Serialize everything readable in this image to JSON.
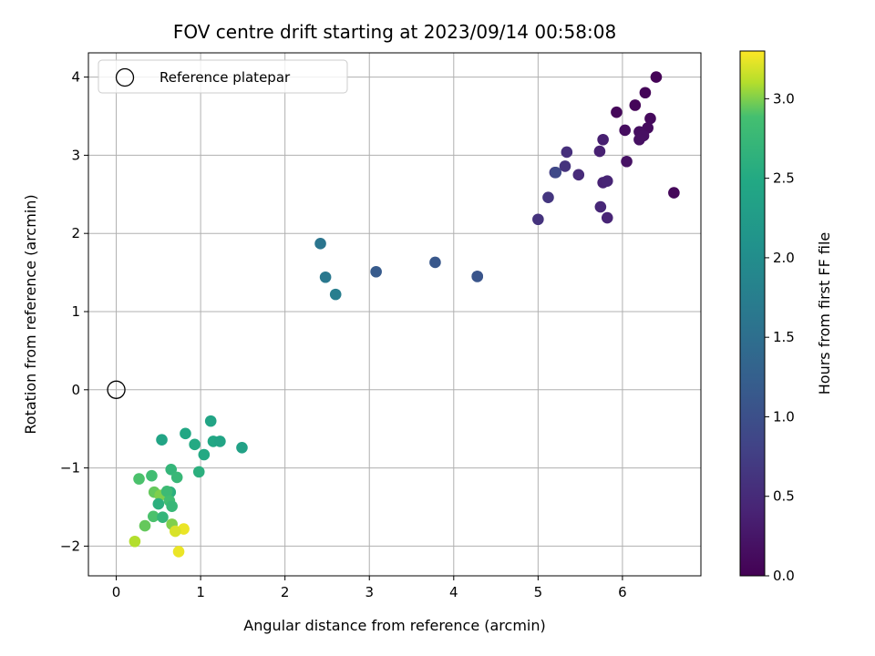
{
  "chart_data": {
    "type": "scatter",
    "title": "FOV centre drift starting at 2023/09/14 00:58:08",
    "xlabel": "Angular distance from reference (arcmin)",
    "ylabel": "Rotation from reference (arcmin)",
    "xlim": [
      -0.33,
      6.93
    ],
    "ylim": [
      -2.38,
      4.31
    ],
    "xticks": [
      0,
      1,
      2,
      3,
      4,
      5,
      6
    ],
    "yticks": [
      -2,
      -1,
      0,
      1,
      2,
      3,
      4
    ],
    "grid": true,
    "legend": {
      "placement": "top-left",
      "entries": [
        "Reference platepar"
      ]
    },
    "reference_point": {
      "label": "Reference platepar",
      "x": 0,
      "y": 0,
      "marker": "open-circle"
    },
    "colorbar": {
      "label": "Hours from first FF file",
      "colormap": "viridis",
      "range": [
        0,
        3.3
      ],
      "ticks": [
        0.0,
        0.5,
        1.0,
        1.5,
        2.0,
        2.5,
        3.0
      ],
      "tick_labels": [
        "0.0",
        "0.5",
        "1.0",
        "1.5",
        "2.0",
        "2.5",
        "3.0"
      ]
    },
    "points": [
      {
        "x": 6.4,
        "y": 4.0,
        "c": 0.02
      },
      {
        "x": 6.27,
        "y": 3.8,
        "c": 0.05
      },
      {
        "x": 6.15,
        "y": 3.64,
        "c": 0.06
      },
      {
        "x": 5.93,
        "y": 3.55,
        "c": 0.08
      },
      {
        "x": 6.33,
        "y": 3.47,
        "c": 0.1
      },
      {
        "x": 6.3,
        "y": 3.35,
        "c": 0.12
      },
      {
        "x": 6.03,
        "y": 3.32,
        "c": 0.14
      },
      {
        "x": 6.2,
        "y": 3.3,
        "c": 0.15
      },
      {
        "x": 6.25,
        "y": 3.25,
        "c": 0.17
      },
      {
        "x": 6.2,
        "y": 3.2,
        "c": 0.18
      },
      {
        "x": 6.05,
        "y": 2.92,
        "c": 0.2
      },
      {
        "x": 6.61,
        "y": 2.52,
        "c": 0.08
      },
      {
        "x": 5.77,
        "y": 3.2,
        "c": 0.35
      },
      {
        "x": 5.73,
        "y": 3.05,
        "c": 0.38
      },
      {
        "x": 5.34,
        "y": 3.04,
        "c": 0.55
      },
      {
        "x": 5.32,
        "y": 2.86,
        "c": 0.6
      },
      {
        "x": 5.2,
        "y": 2.78,
        "c": 0.7
      },
      {
        "x": 5.48,
        "y": 2.75,
        "c": 0.5
      },
      {
        "x": 5.77,
        "y": 2.65,
        "c": 0.4
      },
      {
        "x": 5.82,
        "y": 2.67,
        "c": 0.42
      },
      {
        "x": 5.12,
        "y": 2.46,
        "c": 0.65
      },
      {
        "x": 5.74,
        "y": 2.34,
        "c": 0.45
      },
      {
        "x": 5.82,
        "y": 2.2,
        "c": 0.43
      },
      {
        "x": 5.0,
        "y": 2.18,
        "c": 0.6
      },
      {
        "x": 5.21,
        "y": 2.78,
        "c": 0.9
      },
      {
        "x": 4.28,
        "y": 1.45,
        "c": 1.0
      },
      {
        "x": 4.28,
        "y": 1.45,
        "c": 1.08
      },
      {
        "x": 3.78,
        "y": 1.63,
        "c": 1.12
      },
      {
        "x": 3.08,
        "y": 1.51,
        "c": 1.18
      },
      {
        "x": 2.42,
        "y": 1.87,
        "c": 1.6
      },
      {
        "x": 2.48,
        "y": 1.44,
        "c": 1.65
      },
      {
        "x": 2.6,
        "y": 1.22,
        "c": 1.75
      },
      {
        "x": 1.12,
        "y": -0.4,
        "c": 2.4
      },
      {
        "x": 0.82,
        "y": -0.56,
        "c": 2.45
      },
      {
        "x": 0.54,
        "y": -0.64,
        "c": 2.4
      },
      {
        "x": 1.15,
        "y": -0.66,
        "c": 2.45
      },
      {
        "x": 1.23,
        "y": -0.66,
        "c": 2.4
      },
      {
        "x": 0.93,
        "y": -0.7,
        "c": 2.5
      },
      {
        "x": 1.49,
        "y": -0.74,
        "c": 2.35
      },
      {
        "x": 1.04,
        "y": -0.83,
        "c": 2.5
      },
      {
        "x": 0.98,
        "y": -1.05,
        "c": 2.6
      },
      {
        "x": 0.65,
        "y": -1.02,
        "c": 2.7
      },
      {
        "x": 0.72,
        "y": -1.12,
        "c": 2.75
      },
      {
        "x": 0.42,
        "y": -1.1,
        "c": 2.85
      },
      {
        "x": 0.27,
        "y": -1.14,
        "c": 2.9
      },
      {
        "x": 0.64,
        "y": -1.31,
        "c": 2.6
      },
      {
        "x": 0.45,
        "y": -1.31,
        "c": 2.95
      },
      {
        "x": 0.52,
        "y": -1.35,
        "c": 3.0
      },
      {
        "x": 0.6,
        "y": -1.3,
        "c": 2.8
      },
      {
        "x": 0.63,
        "y": -1.42,
        "c": 2.85
      },
      {
        "x": 0.5,
        "y": -1.46,
        "c": 2.6
      },
      {
        "x": 0.66,
        "y": -1.49,
        "c": 2.75
      },
      {
        "x": 0.44,
        "y": -1.62,
        "c": 2.9
      },
      {
        "x": 0.55,
        "y": -1.63,
        "c": 2.7
      },
      {
        "x": 0.34,
        "y": -1.74,
        "c": 2.95
      },
      {
        "x": 0.66,
        "y": -1.72,
        "c": 3.0
      },
      {
        "x": 0.8,
        "y": -1.78,
        "c": 3.25
      },
      {
        "x": 0.7,
        "y": -1.81,
        "c": 3.2
      },
      {
        "x": 0.22,
        "y": -1.94,
        "c": 3.1
      },
      {
        "x": 0.74,
        "y": -2.07,
        "c": 3.25
      }
    ]
  }
}
